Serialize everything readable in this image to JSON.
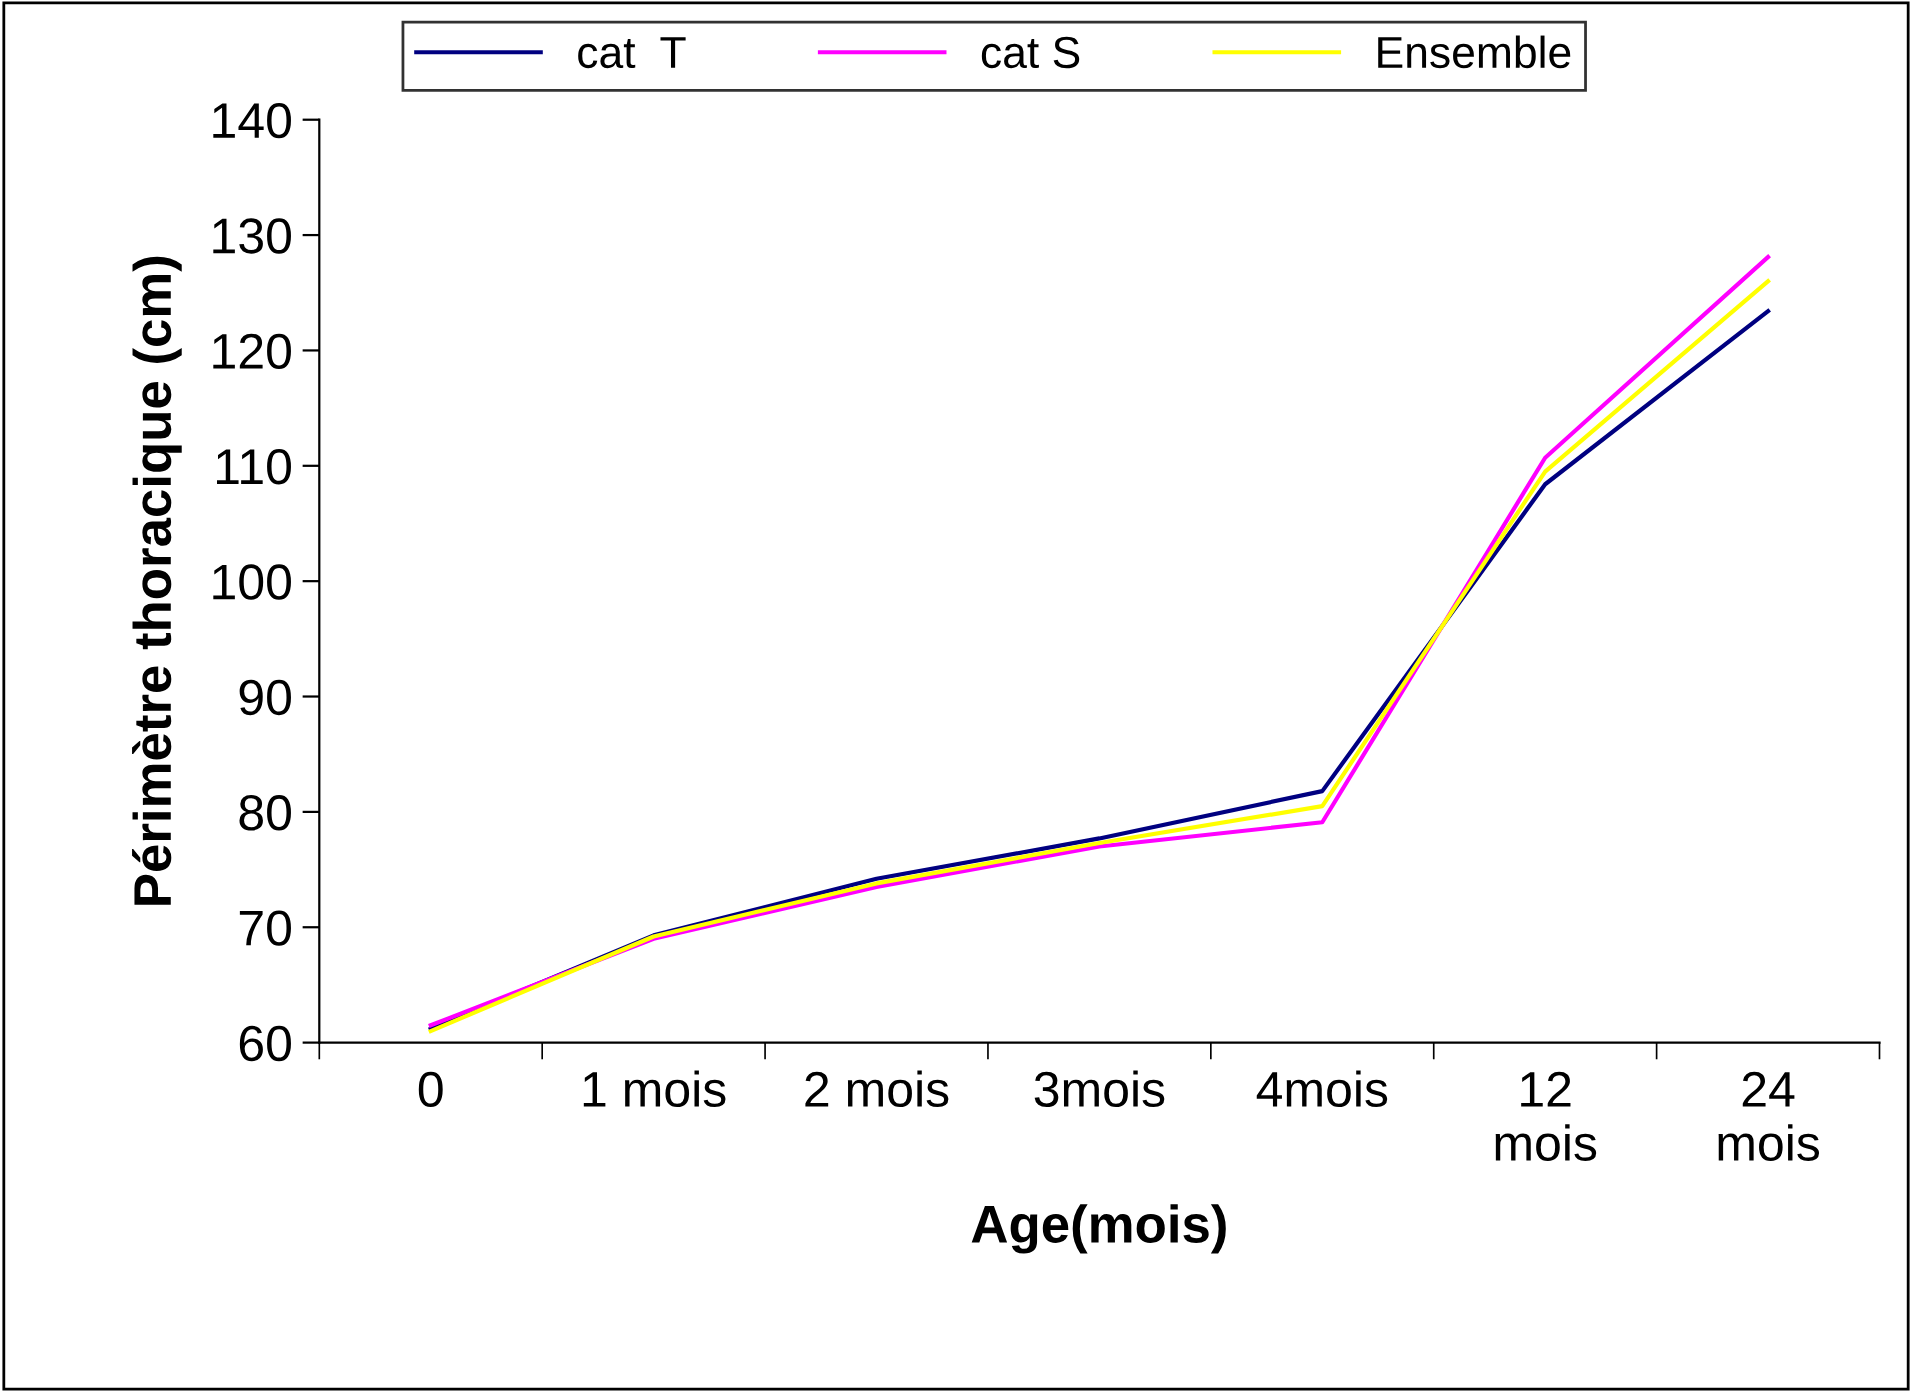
{
  "chart_data": {
    "type": "line",
    "xlabel": "Age(mois)",
    "ylabel": "Périmètre thoracique (cm)",
    "categories": [
      "0",
      "1 mois",
      "2 mois",
      "3mois",
      "4mois",
      "12\nmois",
      "24\nmois"
    ],
    "series": [
      {
        "name": "cat  T",
        "color": "#000080",
        "values": [
          61.2,
          69.3,
          74.2,
          77.7,
          81.8,
          108.4,
          123.4
        ]
      },
      {
        "name": "cat S",
        "color": "#ff00ff",
        "values": [
          61.5,
          69.0,
          73.5,
          77.0,
          79.1,
          110.7,
          128.1
        ]
      },
      {
        "name": "Ensemble",
        "color": "#ffff00",
        "values": [
          61.0,
          69.2,
          73.8,
          77.3,
          80.5,
          109.5,
          126.0
        ]
      }
    ],
    "ylim": [
      60,
      140
    ],
    "yticks": [
      60,
      70,
      80,
      90,
      100,
      110,
      120,
      130,
      140
    ],
    "grid": false,
    "legend": "top",
    "marker": "none",
    "line_style": "solid"
  }
}
